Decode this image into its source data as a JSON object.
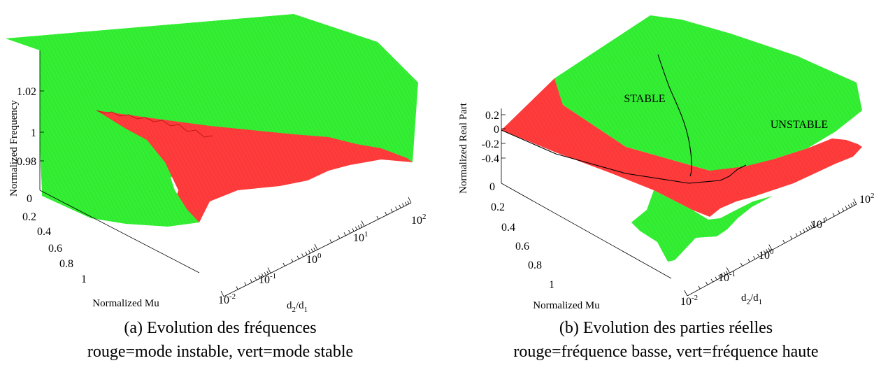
{
  "chart_data": [
    {
      "type": "surface",
      "zlabel": "Normalized Frequency",
      "ylabel": "Normalized Mu",
      "xlabel_main": "d",
      "xlabel_sub1": "2",
      "xlabel_slash": "/d",
      "xlabel_sub2": "1",
      "zticks": [
        "1.02",
        "1",
        "0.98"
      ],
      "mu_ticks": [
        "0",
        "0.2",
        "0.4",
        "0.6",
        "0.8",
        "1"
      ],
      "ratio_ticks": [
        {
          "base": "10",
          "exp": "-2"
        },
        {
          "base": "10",
          "exp": "-1"
        },
        {
          "base": "10",
          "exp": "0"
        },
        {
          "base": "10",
          "exp": "1"
        },
        {
          "base": "10",
          "exp": "2"
        }
      ],
      "x_scale": "log",
      "colors": {
        "unstable": "#ff3b3b",
        "stable": "#33ee33"
      },
      "caption_line1": "(a) Evolution des fréquences",
      "caption_line2": "rouge=mode instable, vert=mode stable"
    },
    {
      "type": "surface",
      "zlabel": "Normalized Real Part",
      "ylabel": "Normalized Mu",
      "xlabel_main": "d",
      "xlabel_sub1": "2",
      "xlabel_slash": "/d",
      "xlabel_sub2": "1",
      "zticks": [
        "0.2",
        "0",
        "-0.2",
        "-0.4"
      ],
      "mu_ticks": [
        "0",
        "0.2",
        "0.4",
        "0.6",
        "0.8",
        "1"
      ],
      "ratio_ticks": [
        {
          "base": "10",
          "exp": "-2"
        },
        {
          "base": "10",
          "exp": "-1"
        },
        {
          "base": "10",
          "exp": "0"
        },
        {
          "base": "10",
          "exp": "1"
        },
        {
          "base": "10",
          "exp": "2"
        }
      ],
      "x_scale": "log",
      "annotations": [
        "STABLE",
        "UNSTABLE"
      ],
      "colors": {
        "low_frequency": "#ff3b3b",
        "high_frequency": "#33ee33"
      },
      "caption_line1": "(b) Evolution des parties réelles",
      "caption_line2": "rouge=fréquence basse, vert=fréquence haute"
    }
  ]
}
